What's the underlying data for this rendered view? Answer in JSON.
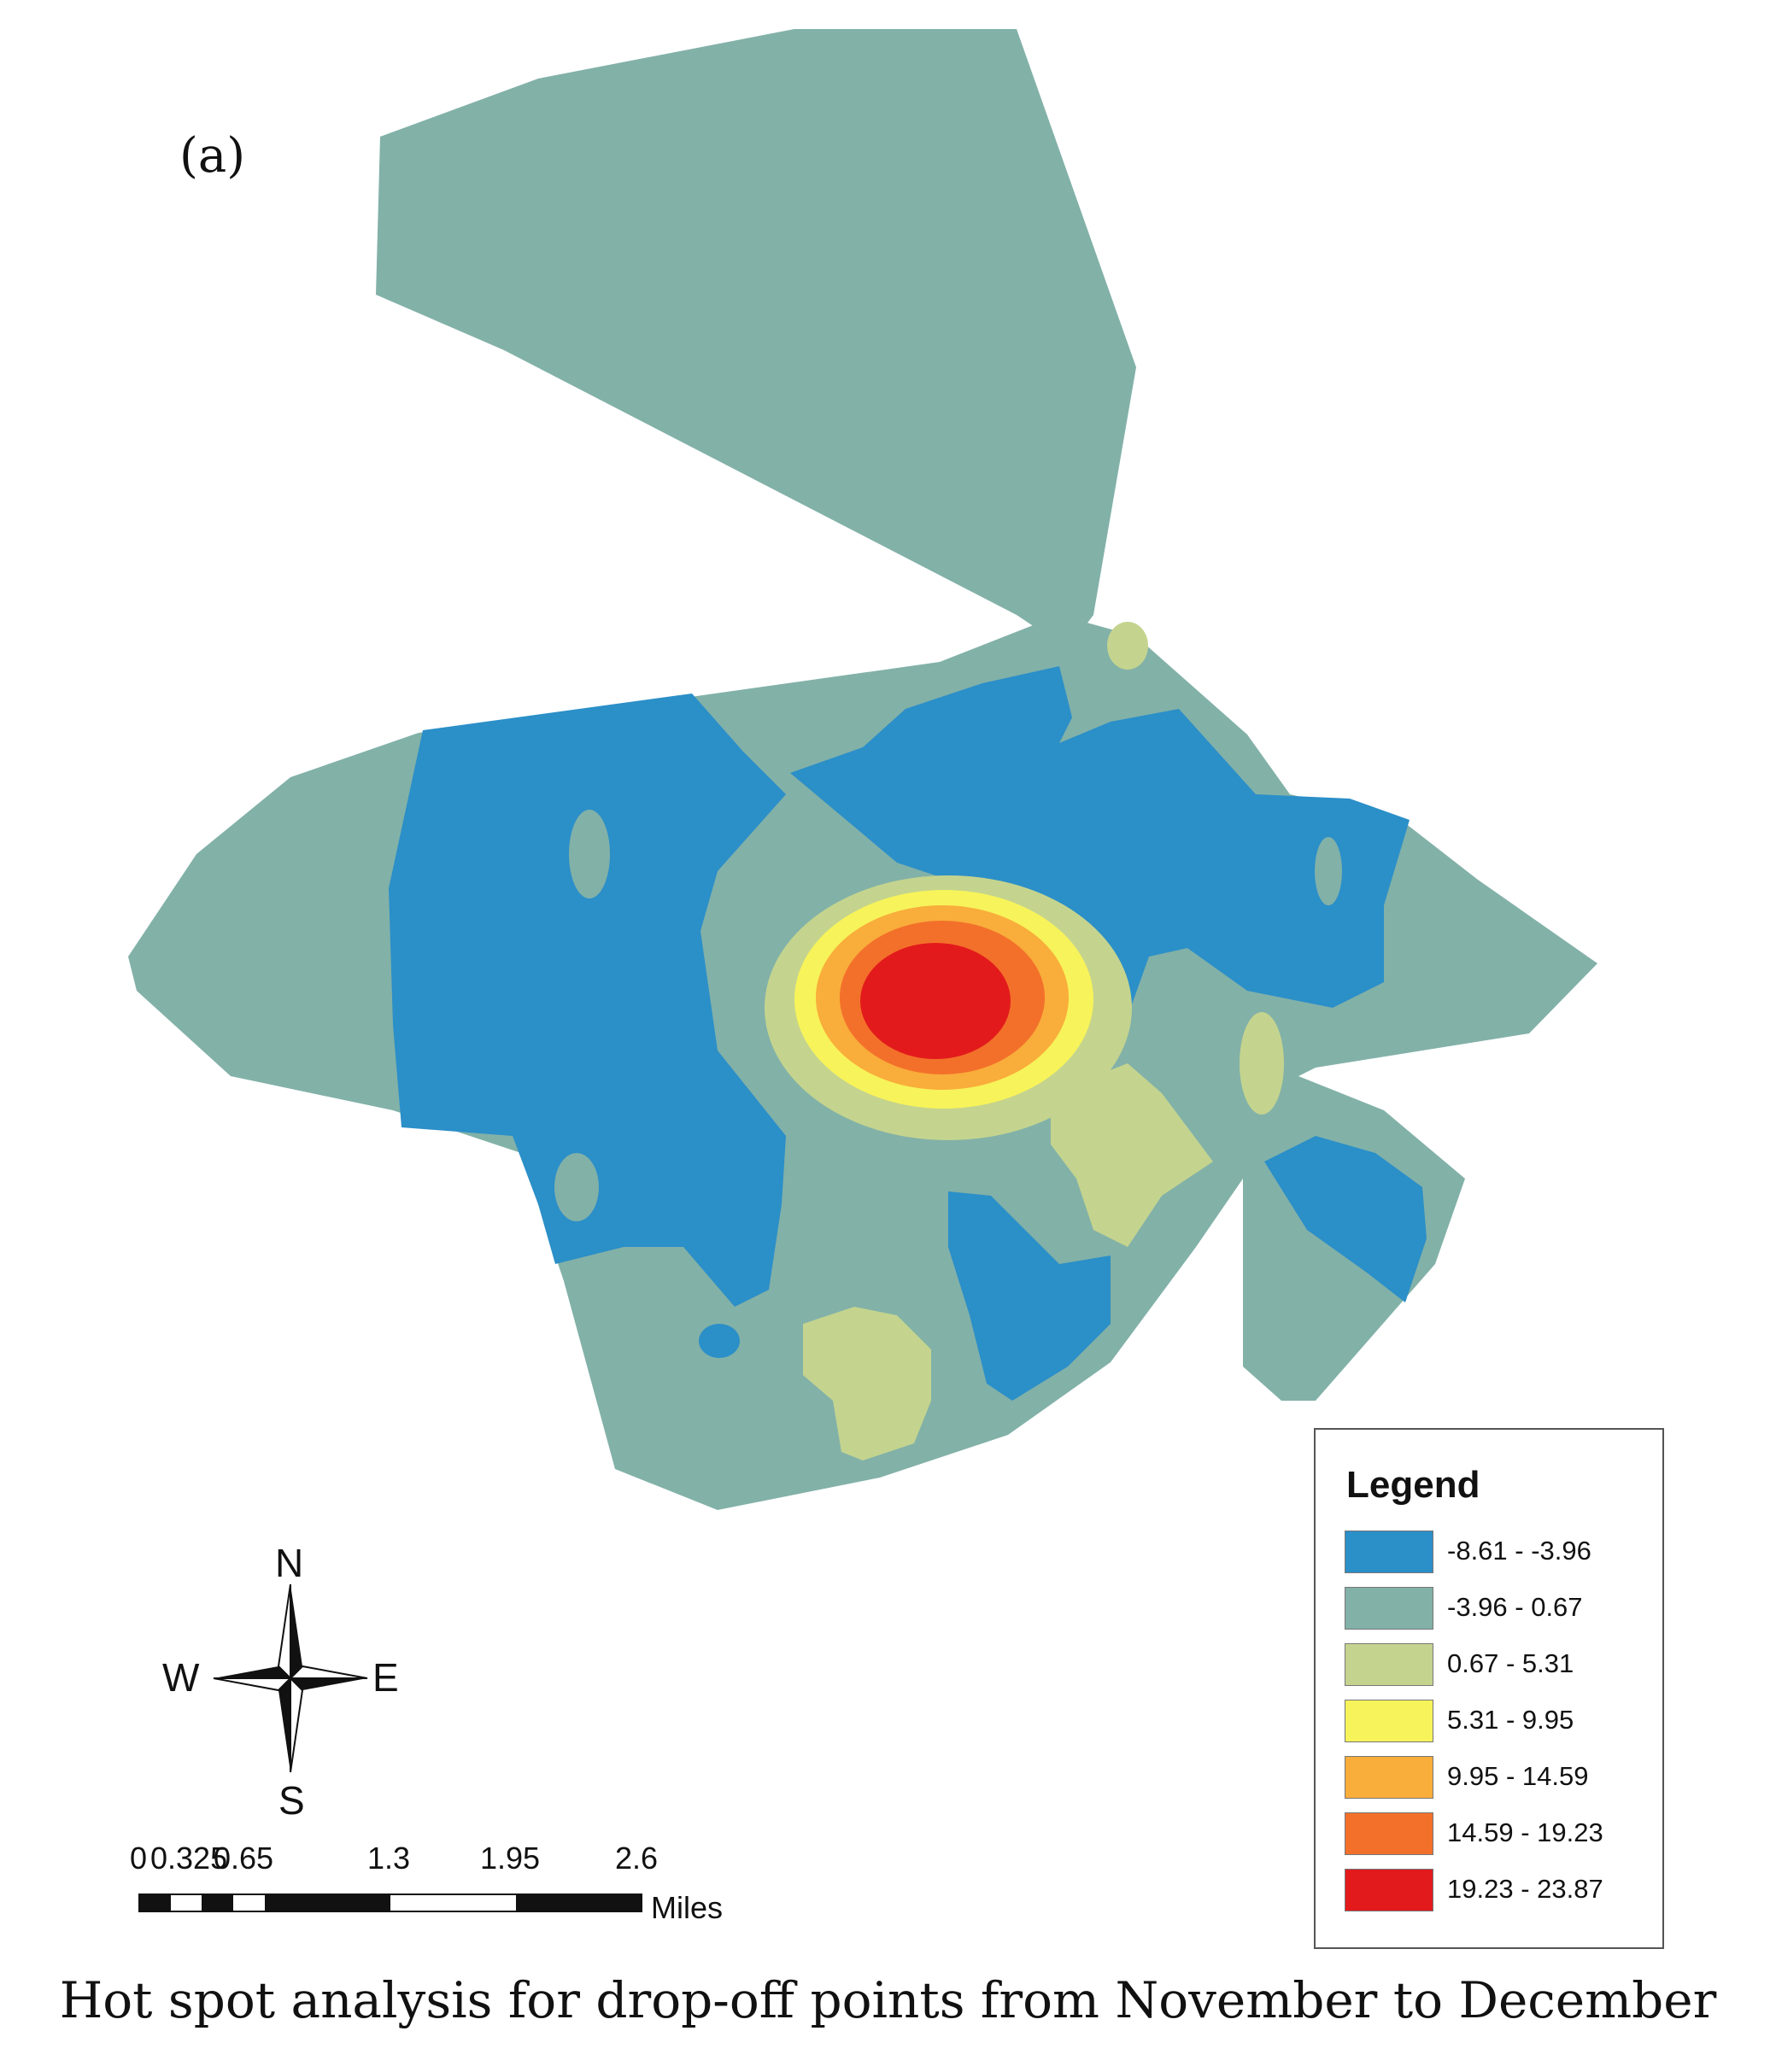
{
  "figure": {
    "panel_label": "(a)",
    "caption": "Hot spot analysis for drop-off points from November to December"
  },
  "legend": {
    "title": "Legend",
    "classes": [
      {
        "label": "-8.61 - -3.96",
        "color": "#2b8fc8"
      },
      {
        "label": "-3.96 - 0.67",
        "color": "#82b1a8"
      },
      {
        "label": "0.67 - 5.31",
        "color": "#c4d48e"
      },
      {
        "label": "5.31 - 9.95",
        "color": "#f7f35a"
      },
      {
        "label": "9.95 - 14.59",
        "color": "#f9ad3b"
      },
      {
        "label": "14.59 - 19.23",
        "color": "#f3702a"
      },
      {
        "label": "19.23 - 23.87",
        "color": "#e31a1c"
      }
    ]
  },
  "compass": {
    "north": "N",
    "south": "S",
    "east": "E",
    "west": "W"
  },
  "scale_bar": {
    "ticks": [
      "0",
      "0.325",
      "0.65",
      "1.3",
      "1.95",
      "2.6"
    ],
    "units": "Miles"
  }
}
